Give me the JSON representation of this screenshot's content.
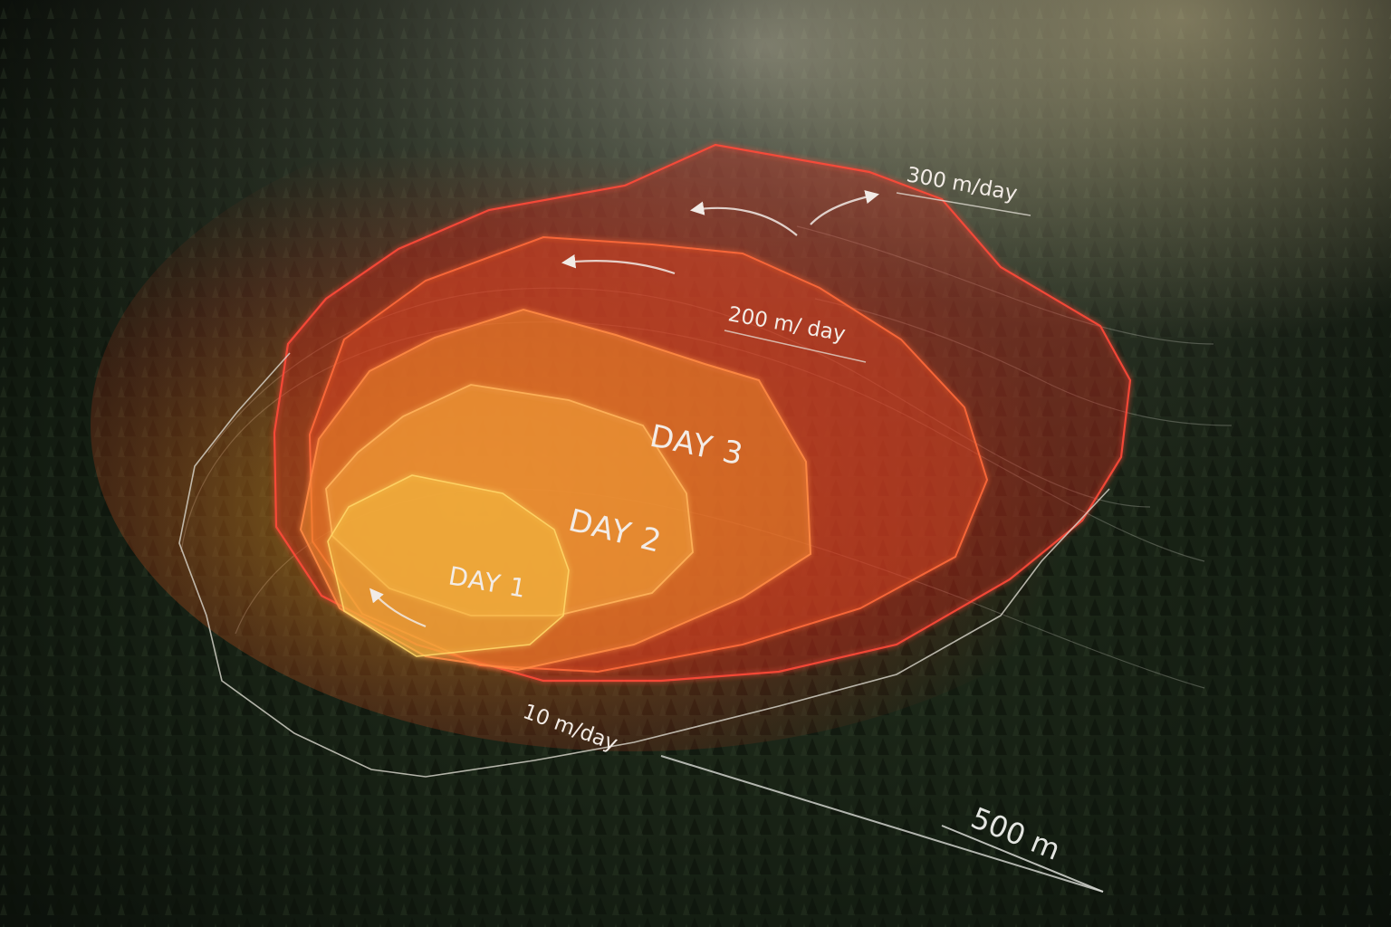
{
  "zones": [
    {
      "label": "DAY 1",
      "color": "#f0b13e"
    },
    {
      "label": "DAY 2",
      "color": "#f08a2c"
    },
    {
      "label": "DAY 3",
      "color": "#ee5a2c"
    }
  ],
  "outer_zone_color": "#ff4a38",
  "rate_labels": {
    "outer": "300 m/day",
    "middle": "200 m/ day",
    "edge": "10 m/day"
  },
  "scale_bar": {
    "label": "500 m"
  },
  "icons": [
    "spread-direction-arrow-icon"
  ],
  "colors": {
    "forest_dark": "#0d130d",
    "forest_mid": "#1f2b1c",
    "mist": "#b9b7aa",
    "contour_line": "#d9d7cc"
  }
}
